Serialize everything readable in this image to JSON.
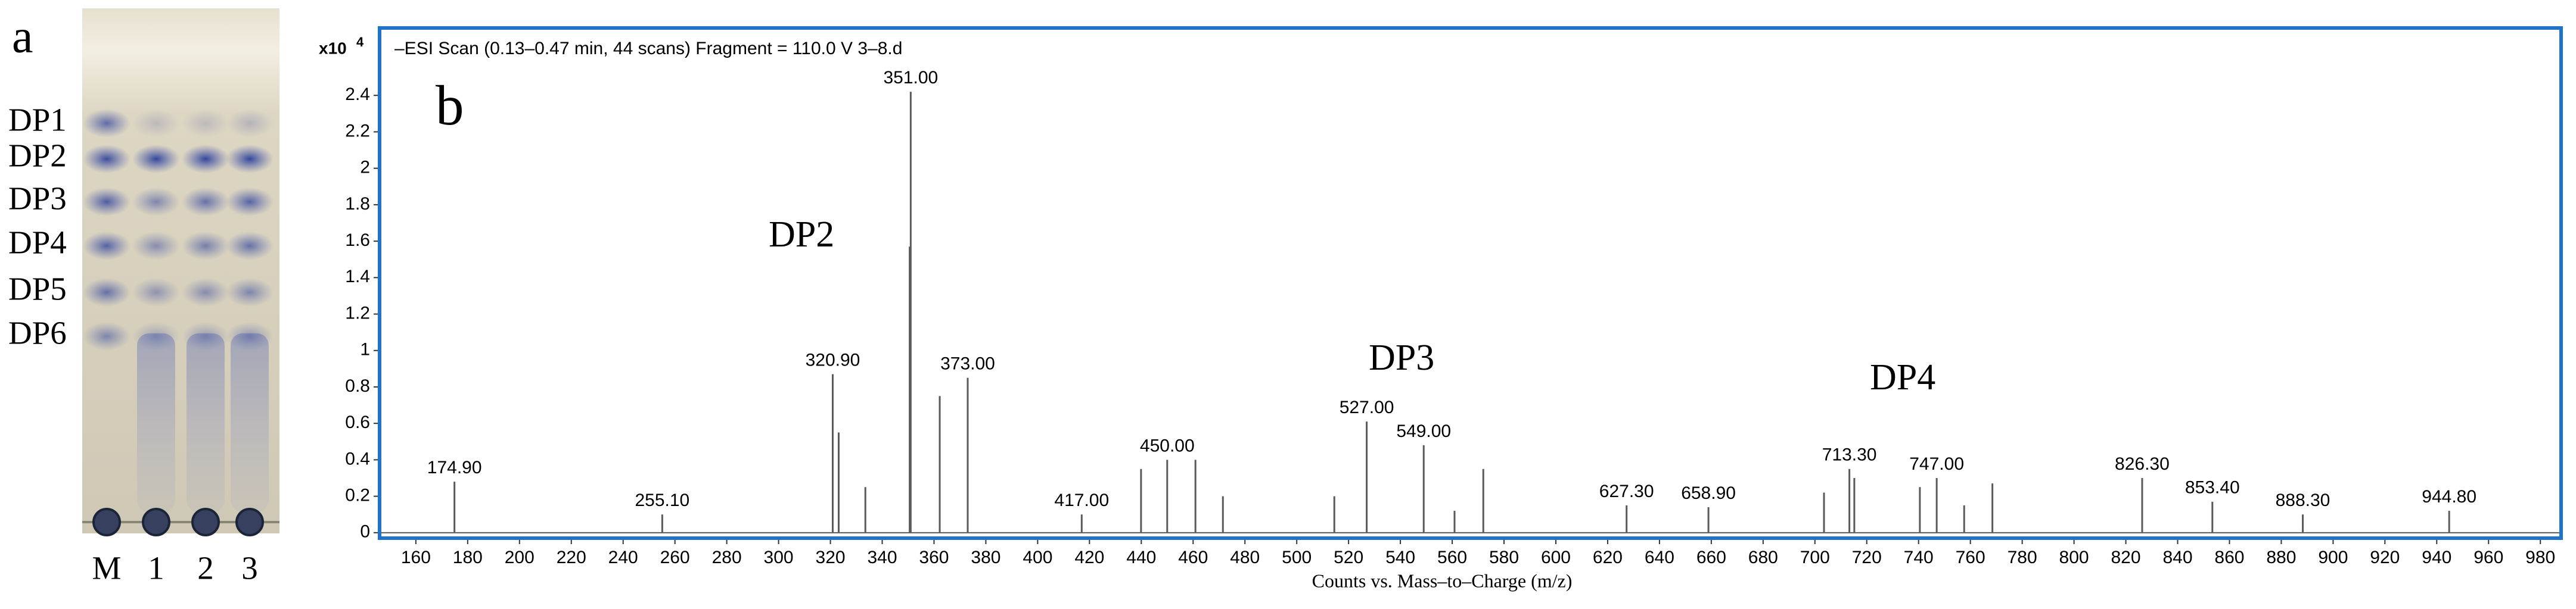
{
  "tlc": {
    "panel_label": "a",
    "bands": [
      "DP1",
      "DP2",
      "DP3",
      "DP4",
      "DP5",
      "DP6"
    ],
    "lanes": [
      "M",
      "1",
      "2",
      "3"
    ]
  },
  "chart_data": {
    "type": "spectrum",
    "panel_label": "b",
    "header": "–ESI Scan (0.13–0.47 min, 44 scans) Fragment = 110.0 V 3–8.d",
    "y_scale_base": "x10",
    "y_scale_exponent": "4",
    "xlabel": "Counts vs. Mass–to–Charge (m/z)",
    "annotations": [
      "DP2",
      "DP3",
      "DP4"
    ],
    "color": "#5a5a5a",
    "frame_color": "#1f74c8",
    "x": [
      174.9,
      255.1,
      320.9,
      323.2,
      333.5,
      350.6,
      351.0,
      362.2,
      373.0,
      417.0,
      439.9,
      450.0,
      460.9,
      471.5,
      514.5,
      527.0,
      549.0,
      560.9,
      572.0,
      627.3,
      658.9,
      703.5,
      713.3,
      715.2,
      740.5,
      747.0,
      757.6,
      768.5,
      826.3,
      853.4,
      888.3,
      944.8
    ],
    "values": [
      0.28,
      0.1,
      0.87,
      0.55,
      0.25,
      1.57,
      2.42,
      0.75,
      0.85,
      0.1,
      0.35,
      0.4,
      0.4,
      0.2,
      0.2,
      0.61,
      0.48,
      0.12,
      0.35,
      0.15,
      0.14,
      0.22,
      0.35,
      0.3,
      0.25,
      0.3,
      0.15,
      0.27,
      0.3,
      0.17,
      0.1,
      0.12
    ],
    "x_labels": [
      "174.90",
      "255.10",
      "320.90",
      null,
      null,
      null,
      "351.00",
      null,
      "373.00",
      "417.00",
      null,
      "450.00",
      null,
      null,
      null,
      "527.00",
      "549.00",
      null,
      null,
      "627.30",
      "658.90",
      null,
      "713.30",
      null,
      null,
      "747.00",
      null,
      null,
      "826.30",
      "853.40",
      "888.30",
      "944.80"
    ],
    "xlim": [
      146,
      988
    ],
    "ylim": [
      -0.03,
      2.77
    ],
    "xticks": [
      160,
      180,
      200,
      220,
      240,
      260,
      280,
      300,
      320,
      340,
      360,
      380,
      400,
      420,
      440,
      460,
      480,
      500,
      520,
      540,
      560,
      580,
      600,
      620,
      640,
      660,
      680,
      700,
      720,
      740,
      760,
      780,
      800,
      820,
      840,
      860,
      880,
      900,
      920,
      940,
      960,
      980
    ],
    "yticks": [
      0,
      0.2,
      0.4,
      0.6,
      0.8,
      1,
      1.2,
      1.4,
      1.6,
      1.8,
      2,
      2.2,
      2.4
    ]
  }
}
